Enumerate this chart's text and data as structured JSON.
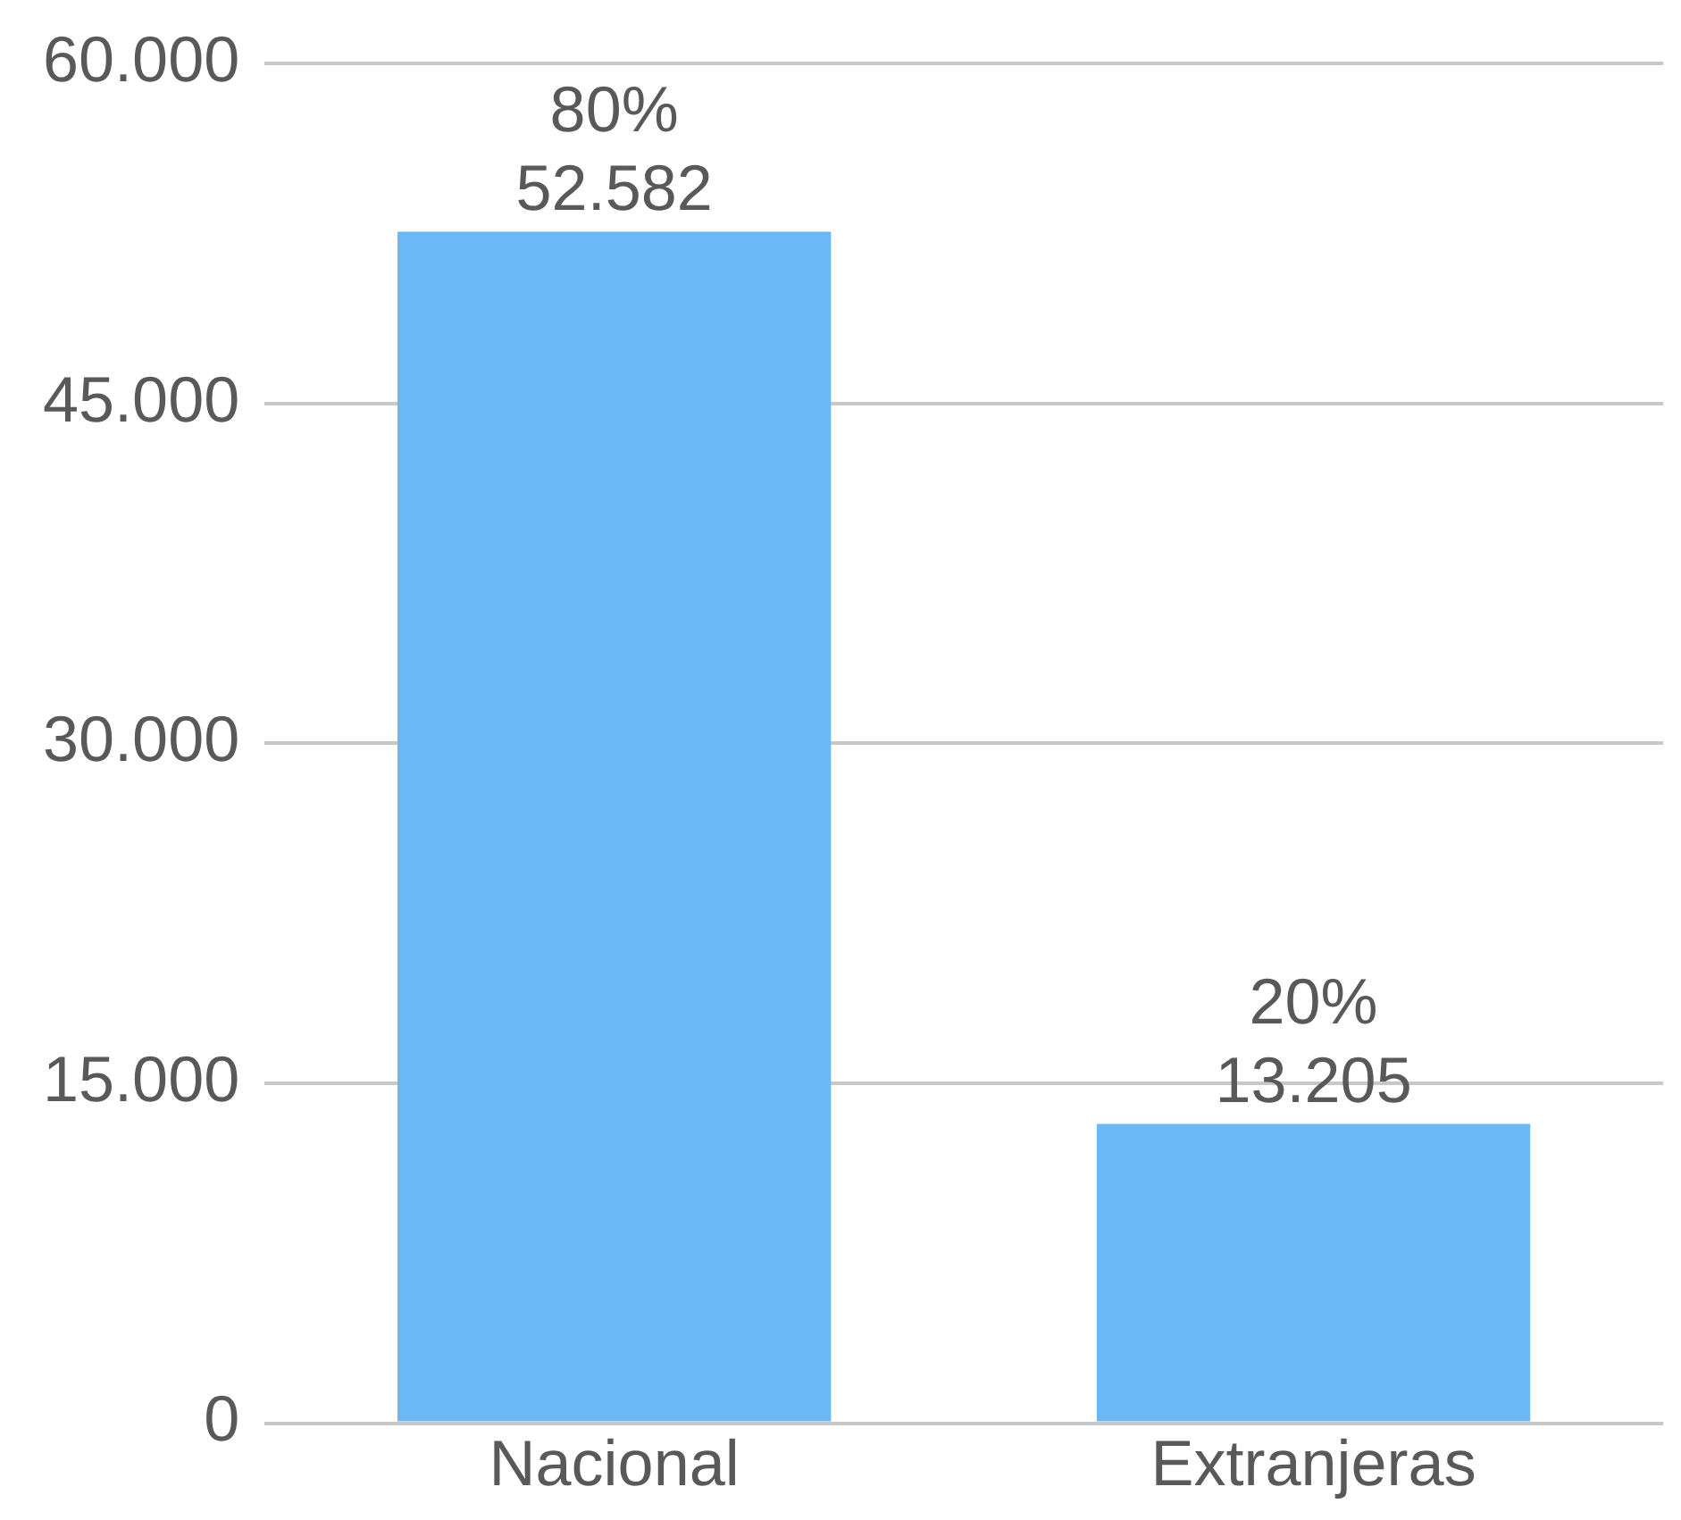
{
  "chart_data": {
    "type": "bar",
    "categories": [
      "Nacional",
      "Extranjeras"
    ],
    "values": [
      52582,
      13205
    ],
    "value_labels": [
      "52.582",
      "13.205"
    ],
    "color": "#6ab8f5",
    "ylim": [
      0,
      60000
    ],
    "yticks": [
      {
        "value": 0,
        "label": "0"
      },
      {
        "value": 15000,
        "label": "15.000"
      },
      {
        "value": 30000,
        "label": "30.000"
      },
      {
        "value": 45000,
        "label": "45.000"
      },
      {
        "value": 60000,
        "label": "60.000"
      }
    ],
    "grid": "y",
    "legend": false,
    "annotations": [
      {
        "text": "80%",
        "x": "Nacional",
        "y": 52582
      },
      {
        "text": "20%",
        "x": "Extranjeras",
        "y": 13205
      }
    ]
  }
}
